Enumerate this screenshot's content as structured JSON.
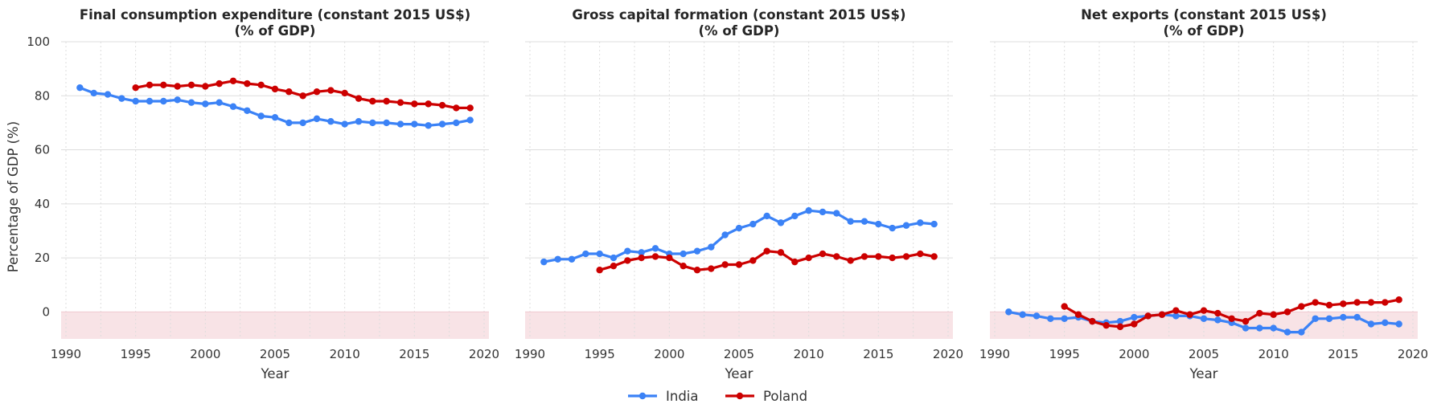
{
  "chart_data": {
    "type": "line",
    "shared_ylabel": "Percentage of GDP (%)",
    "ylim": [
      -10,
      100
    ],
    "xlim": [
      1990,
      2020
    ],
    "yticks": [
      0,
      20,
      40,
      60,
      80,
      100
    ],
    "xticks": [
      1990,
      1995,
      2000,
      2005,
      2010,
      2015,
      2020
    ],
    "xlabel": "Year",
    "grid": true,
    "negative_region_shaded": true,
    "legend": {
      "placement": "bottom-center",
      "entries": [
        "India",
        "Poland"
      ]
    },
    "colors": {
      "India": "#3b82f6",
      "Poland": "#cc0000",
      "negative_shade": "#f8e3e6"
    },
    "panels": [
      {
        "title_line1": "Final consumption expenditure (constant 2015 US$)",
        "title_line2": "(% of GDP)",
        "series": [
          {
            "name": "India",
            "x": [
              1991,
              1992,
              1993,
              1994,
              1995,
              1996,
              1997,
              1998,
              1999,
              2000,
              2001,
              2002,
              2003,
              2004,
              2005,
              2006,
              2007,
              2008,
              2009,
              2010,
              2011,
              2012,
              2013,
              2014,
              2015,
              2016,
              2017,
              2018,
              2019
            ],
            "values": [
              83.0,
              81.0,
              80.5,
              79.0,
              78.0,
              78.0,
              78.0,
              78.5,
              77.5,
              77.0,
              77.5,
              76.0,
              74.5,
              72.5,
              72.0,
              70.0,
              70.0,
              71.5,
              70.5,
              69.5,
              70.5,
              70.0,
              70.0,
              69.5,
              69.5,
              69.0,
              69.5,
              70.0,
              71.0
            ]
          },
          {
            "name": "Poland",
            "x": [
              1995,
              1996,
              1997,
              1998,
              1999,
              2000,
              2001,
              2002,
              2003,
              2004,
              2005,
              2006,
              2007,
              2008,
              2009,
              2010,
              2011,
              2012,
              2013,
              2014,
              2015,
              2016,
              2017,
              2018,
              2019
            ],
            "values": [
              83.0,
              84.0,
              84.0,
              83.5,
              84.0,
              83.5,
              84.5,
              85.5,
              84.5,
              84.0,
              82.5,
              81.5,
              80.0,
              81.5,
              82.0,
              81.0,
              79.0,
              78.0,
              78.0,
              77.5,
              77.0,
              77.0,
              76.5,
              75.5,
              75.5
            ]
          }
        ]
      },
      {
        "title_line1": "Gross capital formation (constant 2015 US$)",
        "title_line2": "(% of GDP)",
        "series": [
          {
            "name": "India",
            "x": [
              1991,
              1992,
              1993,
              1994,
              1995,
              1996,
              1997,
              1998,
              1999,
              2000,
              2001,
              2002,
              2003,
              2004,
              2005,
              2006,
              2007,
              2008,
              2009,
              2010,
              2011,
              2012,
              2013,
              2014,
              2015,
              2016,
              2017,
              2018,
              2019
            ],
            "values": [
              18.5,
              19.5,
              19.5,
              21.5,
              21.5,
              20.0,
              22.5,
              22.0,
              23.5,
              21.5,
              21.5,
              22.5,
              24.0,
              28.5,
              31.0,
              32.5,
              35.5,
              33.0,
              35.5,
              37.5,
              37.0,
              36.5,
              33.5,
              33.5,
              32.5,
              31.0,
              32.0,
              33.0,
              32.5
            ]
          },
          {
            "name": "Poland",
            "x": [
              1995,
              1996,
              1997,
              1998,
              1999,
              2000,
              2001,
              2002,
              2003,
              2004,
              2005,
              2006,
              2007,
              2008,
              2009,
              2010,
              2011,
              2012,
              2013,
              2014,
              2015,
              2016,
              2017,
              2018,
              2019
            ],
            "values": [
              15.5,
              17.0,
              19.0,
              20.0,
              20.5,
              20.0,
              17.0,
              15.5,
              16.0,
              17.5,
              17.5,
              19.0,
              22.5,
              22.0,
              18.5,
              20.0,
              21.5,
              20.5,
              19.0,
              20.5,
              20.5,
              20.0,
              20.5,
              21.5,
              20.5
            ]
          }
        ]
      },
      {
        "title_line1": "Net exports (constant 2015 US$)",
        "title_line2": "(% of GDP)",
        "series": [
          {
            "name": "India",
            "x": [
              1991,
              1992,
              1993,
              1994,
              1995,
              1996,
              1997,
              1998,
              1999,
              2000,
              2001,
              2002,
              2003,
              2004,
              2005,
              2006,
              2007,
              2008,
              2009,
              2010,
              2011,
              2012,
              2013,
              2014,
              2015,
              2016,
              2017,
              2018,
              2019
            ],
            "values": [
              0.0,
              -1.0,
              -1.5,
              -2.5,
              -2.5,
              -2.0,
              -3.5,
              -4.0,
              -3.5,
              -2.0,
              -1.5,
              -1.0,
              -1.5,
              -1.5,
              -2.5,
              -3.0,
              -4.0,
              -6.0,
              -6.0,
              -6.0,
              -7.5,
              -7.5,
              -2.5,
              -2.5,
              -2.0,
              -2.0,
              -4.5,
              -4.0,
              -4.5
            ]
          },
          {
            "name": "Poland",
            "x": [
              1995,
              1996,
              1997,
              1998,
              1999,
              2000,
              2001,
              2002,
              2003,
              2004,
              2005,
              2006,
              2007,
              2008,
              2009,
              2010,
              2011,
              2012,
              2013,
              2014,
              2015,
              2016,
              2017,
              2018,
              2019
            ],
            "values": [
              2.0,
              -1.0,
              -3.5,
              -5.0,
              -5.5,
              -4.5,
              -1.5,
              -1.0,
              0.5,
              -1.0,
              0.5,
              -0.5,
              -2.5,
              -3.5,
              -0.5,
              -1.0,
              0.0,
              2.0,
              3.5,
              2.5,
              3.0,
              3.5,
              3.5,
              3.5,
              4.5
            ]
          }
        ]
      }
    ]
  }
}
